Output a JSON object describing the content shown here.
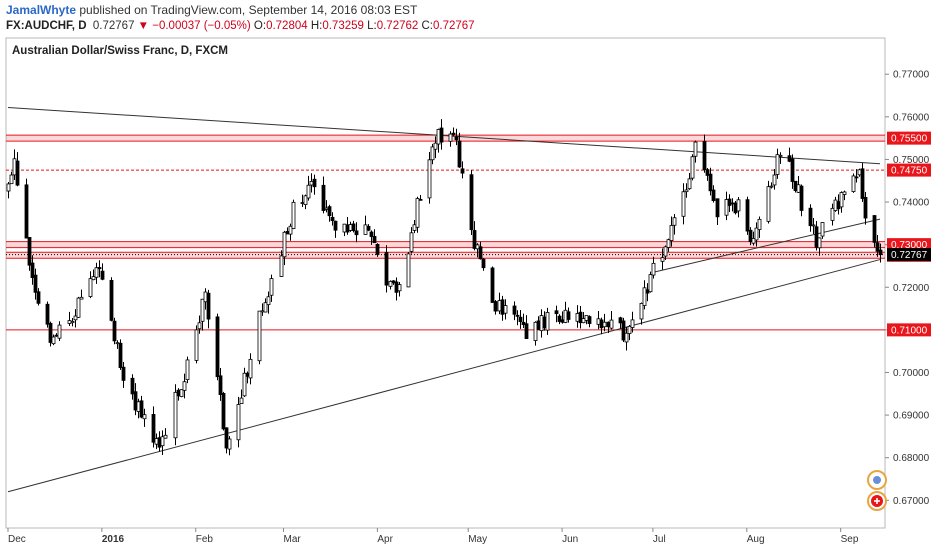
{
  "header": {
    "author": "JamalWhyte",
    "published": "published on TradingView.com, September 14, 2016 08:03 EST",
    "symbol": "FX:AUDCHF, D",
    "last": "0.72767",
    "change": "▼ −0.00037 (−0.05%)",
    "o_label": "O:",
    "o_value": "0.72804",
    "h_label": "H:",
    "h_value": "0.73259",
    "l_label": "L:",
    "l_value": "0.72762",
    "c_label": "C:",
    "c_value": "0.72767"
  },
  "colors": {
    "up": "#ffffff",
    "down": "#000000",
    "level": "#e8151b",
    "trendline": "#333333",
    "last_price_bg": "#000000"
  },
  "chart_data": {
    "type": "candlestick",
    "title": "Australian Dollar/Swiss Franc, D, FXCM",
    "y_ticks": [
      "0.77000",
      "0.76000",
      "0.75000",
      "0.74000",
      "0.73000",
      "0.72000",
      "0.71000",
      "0.70000",
      "0.69000",
      "0.68000",
      "0.67000"
    ],
    "ylim": [
      0.6635,
      0.7785
    ],
    "x_range": [
      "2015-12-01",
      "2016-09-14"
    ],
    "x_ticks": [
      {
        "date": "2015-12-01",
        "label": "Dec",
        "bold": false
      },
      {
        "date": "2016-01-01",
        "label": "2016",
        "bold": true
      },
      {
        "date": "2016-02-01",
        "label": "Feb",
        "bold": false
      },
      {
        "date": "2016-03-01",
        "label": "Mar",
        "bold": false
      },
      {
        "date": "2016-04-01",
        "label": "Apr",
        "bold": false
      },
      {
        "date": "2016-05-01",
        "label": "May",
        "bold": false
      },
      {
        "date": "2016-06-01",
        "label": "Jun",
        "bold": false
      },
      {
        "date": "2016-07-01",
        "label": "Jul",
        "bold": false
      },
      {
        "date": "2016-08-01",
        "label": "Aug",
        "bold": false
      },
      {
        "date": "2016-09-01",
        "label": "Sep",
        "bold": false
      }
    ],
    "levels": [
      {
        "price": 0.755,
        "label": "0.75500",
        "style": "band"
      },
      {
        "price": 0.7475,
        "label": "0.74750",
        "style": "dashed"
      },
      {
        "price": 0.73,
        "label": "0.73000",
        "style": "band"
      },
      {
        "price": 0.7275,
        "label": "0.72750",
        "style": "band"
      },
      {
        "price": 0.71,
        "label": "0.71000",
        "style": "solid"
      }
    ],
    "last_price": {
      "price": 0.72767,
      "label": "0.72767"
    },
    "trendlines": [
      {
        "from": [
          "2015-12-01",
          0.7622
        ],
        "to": [
          "2016-09-14",
          0.749
        ]
      },
      {
        "from": [
          "2015-12-01",
          0.672
        ],
        "to": [
          "2016-09-14",
          0.7265
        ]
      },
      {
        "from": [
          "2016-07-01",
          0.7235
        ],
        "to": [
          "2016-09-14",
          0.736
        ]
      }
    ],
    "anchors": [
      {
        "date": "2015-12-01",
        "close": 0.744
      },
      {
        "date": "2015-12-03",
        "close": 0.751
      },
      {
        "date": "2015-12-08",
        "close": 0.725
      },
      {
        "date": "2015-12-15",
        "close": 0.707
      },
      {
        "date": "2015-12-22",
        "close": 0.714
      },
      {
        "date": "2015-12-31",
        "close": 0.725
      },
      {
        "date": "2016-01-08",
        "close": 0.698
      },
      {
        "date": "2016-01-20",
        "close": 0.683
      },
      {
        "date": "2016-01-29",
        "close": 0.702
      },
      {
        "date": "2016-02-04",
        "close": 0.719
      },
      {
        "date": "2016-02-11",
        "close": 0.682
      },
      {
        "date": "2016-02-23",
        "close": 0.715
      },
      {
        "date": "2016-03-04",
        "close": 0.738
      },
      {
        "date": "2016-03-10",
        "close": 0.745
      },
      {
        "date": "2016-03-18",
        "close": 0.733
      },
      {
        "date": "2016-03-28",
        "close": 0.735
      },
      {
        "date": "2016-04-04",
        "close": 0.722
      },
      {
        "date": "2016-04-08",
        "close": 0.72
      },
      {
        "date": "2016-04-14",
        "close": 0.74
      },
      {
        "date": "2016-04-20",
        "close": 0.756
      },
      {
        "date": "2016-04-27",
        "close": 0.754
      },
      {
        "date": "2016-05-02",
        "close": 0.733
      },
      {
        "date": "2016-05-10",
        "close": 0.716
      },
      {
        "date": "2016-05-20",
        "close": 0.71
      },
      {
        "date": "2016-05-31",
        "close": 0.714
      },
      {
        "date": "2016-06-10",
        "close": 0.713
      },
      {
        "date": "2016-06-22",
        "close": 0.709
      },
      {
        "date": "2016-06-27",
        "close": 0.717
      },
      {
        "date": "2016-07-05",
        "close": 0.73
      },
      {
        "date": "2016-07-12",
        "close": 0.742
      },
      {
        "date": "2016-07-15",
        "close": 0.753
      },
      {
        "date": "2016-07-22",
        "close": 0.738
      },
      {
        "date": "2016-07-29",
        "close": 0.739
      },
      {
        "date": "2016-08-02",
        "close": 0.73
      },
      {
        "date": "2016-08-09",
        "close": 0.745
      },
      {
        "date": "2016-08-12",
        "close": 0.753
      },
      {
        "date": "2016-08-19",
        "close": 0.74
      },
      {
        "date": "2016-08-24",
        "close": 0.731
      },
      {
        "date": "2016-08-31",
        "close": 0.74
      },
      {
        "date": "2016-09-07",
        "close": 0.746
      },
      {
        "date": "2016-09-09",
        "close": 0.736
      },
      {
        "date": "2016-09-14",
        "close": 0.72767
      }
    ]
  }
}
